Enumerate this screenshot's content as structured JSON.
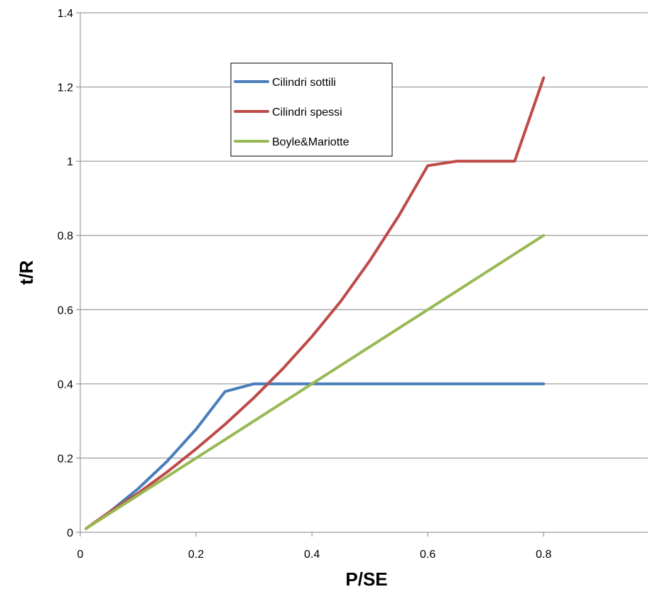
{
  "chart_data": {
    "type": "line",
    "title": "",
    "xlabel": "P/SE",
    "ylabel": "t/R",
    "xlim": [
      0,
      0.98
    ],
    "ylim": [
      0,
      1.4
    ],
    "xticks": [
      0,
      0.2,
      0.4,
      0.6,
      0.8
    ],
    "xtick_labels": [
      "0",
      "0.2",
      "0.4",
      "0.6",
      "0.8"
    ],
    "yticks": [
      0,
      0.2,
      0.4,
      0.6,
      0.8,
      1.0,
      1.2,
      1.4
    ],
    "ytick_labels": [
      "0",
      "0.2",
      "0.4",
      "0.6",
      "0.8",
      "1",
      "1.2",
      "1.4"
    ],
    "grid": "horizontal",
    "legend_position": "upper-center",
    "x": [
      0.01,
      0.05,
      0.1,
      0.15,
      0.2,
      0.25,
      0.3,
      0.35,
      0.4,
      0.45,
      0.5,
      0.55,
      0.6,
      0.65,
      0.7,
      0.75,
      0.8
    ],
    "series": [
      {
        "name": "Cilindri sottili",
        "color": "#4a7ebb",
        "values": [
          0.0101,
          0.0541,
          0.1176,
          0.1915,
          0.2778,
          0.3793,
          0.4,
          0.4,
          0.4,
          0.4,
          0.4,
          0.4,
          0.4,
          0.4,
          0.4,
          0.4,
          0.4
        ]
      },
      {
        "name": "Cilindri spessi",
        "color": "#be4b48",
        "values": [
          0.0101,
          0.0541,
          0.1055,
          0.1625,
          0.2247,
          0.291,
          0.3628,
          0.4412,
          0.5275,
          0.623,
          0.7321,
          0.853,
          0.988,
          1.0,
          1.0,
          1.0,
          1.2247
        ]
      },
      {
        "name": "Boyle&Mariotte",
        "color": "#98b954",
        "values": [
          0.01,
          0.05,
          0.1,
          0.15,
          0.2,
          0.25,
          0.3,
          0.35,
          0.4,
          0.45,
          0.5,
          0.55,
          0.6,
          0.65,
          0.7,
          0.75,
          0.8
        ]
      }
    ]
  }
}
